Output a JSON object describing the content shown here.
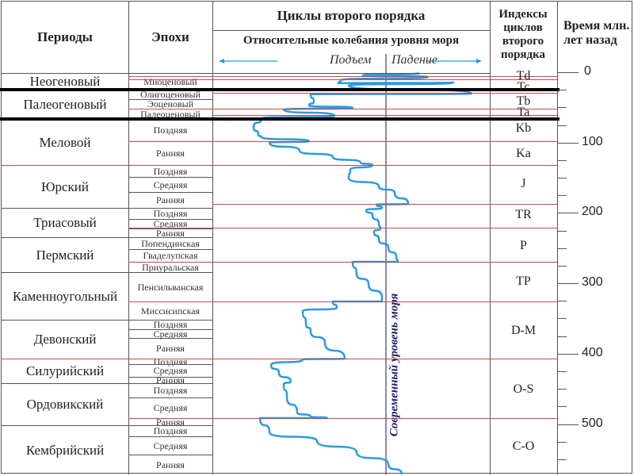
{
  "header": {
    "periods": "Периоды",
    "epochs": "Эпохи",
    "cycles_title": "Циклы второго порядка",
    "sea_level_title": "Относительные колебания уровня моря",
    "rise": "Подъем",
    "fall": "Падение",
    "indices_title": "Индексы циклов второго порядка",
    "time_title": "Время млн. лет назад"
  },
  "periods": [
    "Неогеновый",
    "Палеогеновый",
    "Меловой",
    "Юрский",
    "Триасовый",
    "Пермский",
    "Каменноугольный",
    "Девонский",
    "Силурийский",
    "Ордовикский",
    "Кембрийский"
  ],
  "epochs": [
    "Миоценовый",
    "Олигоценовый",
    "Эоценовый",
    "Палеоценовый",
    "Поздняя",
    "Ранняя",
    "Поздняя",
    "Средняя",
    "Ранняя",
    "Поздняя",
    "Средняя",
    "Ранняя",
    "Попендинская",
    "Гваделупская",
    "Приуральская",
    "Пенсильванская",
    "Миссисипская",
    "Поздняя",
    "Средняя",
    "Ранняя",
    "Поздняя",
    "Средняя",
    "Ранняя",
    "Поздняя",
    "Средняя",
    "Ранняя",
    "Поздняя",
    "Средняя",
    "Ранняя"
  ],
  "cycle_indices": [
    "Td",
    "Tc",
    "Tb",
    "Ta",
    "Kb",
    "Ka",
    "J",
    "TR",
    "P",
    "TP",
    "D-M",
    "O-S",
    "C-O"
  ],
  "time_axis": {
    "unit": "млн. лет",
    "ticks": [
      0,
      100,
      200,
      300,
      400,
      500
    ],
    "minor_step": 25
  },
  "present_sea_level_label": "Современный уровень моря",
  "colors": {
    "curve": "#2a9be0",
    "cycle_boundary": "#c84a4a",
    "present_level_line": "#3a3a8a",
    "present_level_text": "#1a1a6a",
    "arrow": "#2a9be0"
  }
}
